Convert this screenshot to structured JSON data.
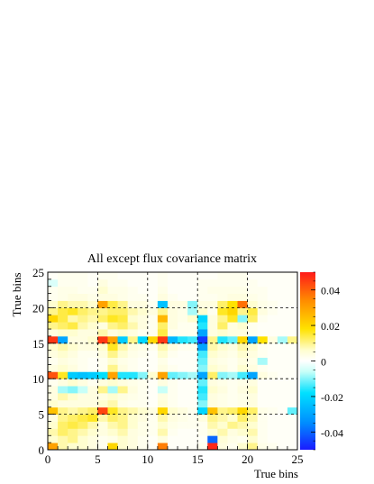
{
  "chart_data": {
    "type": "heatmap",
    "title": "All except flux covariance matrix",
    "xlabel": "True bins",
    "ylabel": "True bins",
    "xlim": [
      0,
      25
    ],
    "ylim": [
      0,
      25
    ],
    "x_ticks": [
      "0",
      "5",
      "10",
      "15",
      "20",
      "25"
    ],
    "y_ticks": [
      "0",
      "5",
      "10",
      "15",
      "20",
      "25"
    ],
    "colorbar": {
      "range": [
        -0.05,
        0.05
      ],
      "ticks": [
        "-0.04",
        "-0.02",
        "0",
        "0.02",
        "0.04"
      ],
      "tick_values": [
        -0.04,
        -0.02,
        0,
        0.02,
        0.04
      ]
    },
    "grid": "dashed at 5, 10, 15, 20",
    "bins_x": 25,
    "bins_y": 25,
    "z": [
      [
        0.03,
        0.008,
        0.006,
        0.006,
        0.004,
        0.002,
        0.02,
        0.006,
        0.004,
        0.002,
        0.001,
        0.036,
        0.001,
        0.001,
        0.001,
        0.002,
        0.048,
        0.004,
        0.002,
        0.006,
        0.01,
        0.003,
        0.002,
        0.001,
        0.001
      ],
      [
        0.006,
        0.008,
        0.01,
        0.006,
        0.004,
        0.002,
        0.003,
        0.006,
        0.004,
        0.002,
        0.001,
        0.004,
        0.001,
        0.001,
        0.001,
        0.001,
        -0.04,
        0.005,
        0.003,
        0.002,
        0.006,
        0.002,
        0.001,
        0.001,
        0.001
      ],
      [
        0.008,
        0.012,
        0.01,
        0.008,
        0.006,
        0.004,
        0.006,
        0.008,
        0.004,
        0.003,
        0.002,
        0.008,
        0.002,
        0.001,
        0.001,
        0.002,
        0.005,
        0.008,
        0.004,
        0.006,
        0.008,
        0.002,
        0.001,
        0.001,
        0.001
      ],
      [
        0.006,
        0.012,
        0.014,
        0.012,
        0.008,
        0.004,
        0.008,
        0.01,
        0.006,
        0.003,
        0.002,
        0.006,
        0.003,
        0.002,
        0.002,
        0.002,
        0.008,
        0.006,
        0.01,
        0.008,
        0.006,
        0.002,
        0.001,
        0.001,
        0.001
      ],
      [
        0.004,
        0.01,
        0.012,
        0.014,
        0.016,
        0.008,
        0.012,
        0.01,
        0.006,
        0.004,
        0.002,
        0.008,
        0.004,
        0.003,
        0.002,
        0.004,
        0.01,
        0.008,
        0.006,
        0.012,
        0.008,
        0.002,
        0.001,
        0.001,
        0.001
      ],
      [
        0.024,
        0.01,
        0.008,
        0.01,
        0.012,
        0.044,
        0.016,
        0.01,
        0.008,
        0.006,
        0.004,
        0.02,
        0.006,
        0.004,
        0.002,
        -0.02,
        0.024,
        0.01,
        0.012,
        0.02,
        0.012,
        0.003,
        0.002,
        0.001,
        -0.012
      ],
      [
        0.006,
        0.004,
        0.004,
        0.004,
        0.004,
        0.006,
        0.008,
        0.003,
        0.002,
        0.002,
        0.001,
        0.005,
        0.002,
        0.001,
        0.001,
        -0.01,
        0.004,
        0.003,
        0.002,
        0.003,
        0.004,
        0.001,
        0.001,
        0.001,
        0.001
      ],
      [
        0.004,
        0.008,
        0.006,
        0.004,
        0.004,
        0.004,
        0.006,
        0.004,
        0.003,
        0.002,
        0.001,
        0.004,
        0.002,
        0.001,
        0.001,
        -0.014,
        0.004,
        0.003,
        0.002,
        0.003,
        0.004,
        0.001,
        0.001,
        0.001,
        0.001
      ],
      [
        0.004,
        -0.008,
        -0.01,
        -0.006,
        0.004,
        0.01,
        -0.008,
        0.01,
        0.004,
        0.002,
        0.001,
        -0.006,
        0.002,
        0.001,
        0.001,
        -0.016,
        0.006,
        0.004,
        0.002,
        0.004,
        0.006,
        0.001,
        0.001,
        0.001,
        0.001
      ],
      [
        0.002,
        0.004,
        0.006,
        0.004,
        0.002,
        0.004,
        0.006,
        0.004,
        0.003,
        0.002,
        0.001,
        0.004,
        0.002,
        0.001,
        0.001,
        -0.012,
        0.004,
        0.003,
        0.002,
        0.003,
        0.004,
        0.001,
        0.001,
        0.001,
        0.001
      ],
      [
        0.042,
        0.016,
        -0.022,
        -0.024,
        -0.022,
        -0.018,
        0.03,
        -0.016,
        -0.016,
        -0.01,
        0.006,
        0.03,
        -0.012,
        -0.01,
        -0.008,
        -0.03,
        0.012,
        -0.01,
        -0.008,
        -0.014,
        -0.03,
        0.004,
        0.002,
        0.001,
        0.001
      ],
      [
        0.004,
        0.006,
        0.004,
        0.002,
        0.001,
        0.002,
        0.01,
        0.004,
        0.002,
        0.001,
        0.001,
        0.004,
        0.002,
        0.001,
        0.001,
        -0.01,
        0.006,
        0.004,
        0.002,
        0.006,
        0.004,
        0.002,
        0.001,
        0.001,
        0.001
      ],
      [
        0.002,
        0.004,
        0.003,
        0.002,
        0.001,
        0.002,
        0.006,
        0.003,
        0.002,
        0.001,
        0.001,
        0.003,
        0.001,
        0.001,
        0.001,
        -0.012,
        0.004,
        0.003,
        0.002,
        0.004,
        0.003,
        -0.008,
        0.001,
        0.001,
        0.001
      ],
      [
        0.004,
        0.006,
        0.004,
        0.002,
        0.002,
        0.004,
        0.01,
        0.006,
        0.003,
        0.002,
        0.001,
        0.006,
        0.002,
        0.001,
        0.001,
        -0.014,
        0.006,
        0.004,
        0.003,
        0.006,
        0.004,
        0.002,
        0.001,
        0.001,
        0.001
      ],
      [
        0.006,
        0.008,
        0.006,
        0.004,
        0.004,
        0.006,
        0.016,
        0.008,
        0.004,
        0.003,
        0.002,
        0.008,
        0.004,
        0.002,
        0.002,
        -0.03,
        0.008,
        0.006,
        0.004,
        0.008,
        0.006,
        0.002,
        0.001,
        0.001,
        0.001
      ],
      [
        0.046,
        -0.03,
        0.004,
        0.004,
        0.006,
        0.046,
        0.03,
        -0.022,
        0.01,
        -0.02,
        0.02,
        0.046,
        -0.026,
        -0.016,
        -0.014,
        -0.046,
        0.01,
        -0.016,
        -0.012,
        0.02,
        -0.03,
        0.018,
        0.004,
        -0.008,
        0.01
      ],
      [
        0.004,
        0.006,
        0.006,
        0.004,
        0.004,
        0.008,
        0.004,
        0.006,
        0.004,
        0.002,
        0.002,
        0.014,
        0.002,
        0.002,
        0.002,
        -0.03,
        0.004,
        0.006,
        0.004,
        0.004,
        0.002,
        0.001,
        0.001,
        0.001,
        0.001
      ],
      [
        0.01,
        0.012,
        0.014,
        0.008,
        0.006,
        0.004,
        0.01,
        0.012,
        0.008,
        0.004,
        0.002,
        0.012,
        0.004,
        0.002,
        0.002,
        -0.016,
        0.004,
        0.012,
        0.004,
        0.006,
        0.002,
        0.001,
        0.001,
        0.001,
        0.001
      ],
      [
        0.02,
        0.014,
        0.008,
        0.01,
        0.008,
        0.012,
        0.016,
        0.014,
        0.006,
        0.004,
        0.002,
        0.026,
        0.004,
        0.003,
        0.006,
        -0.02,
        0.004,
        0.01,
        0.016,
        -0.01,
        0.012,
        0.002,
        0.001,
        0.001,
        0.001
      ],
      [
        0.01,
        0.014,
        0.016,
        0.012,
        0.01,
        0.01,
        0.012,
        0.012,
        0.008,
        0.006,
        0.004,
        0.01,
        0.004,
        0.003,
        -0.008,
        0.006,
        0.002,
        0.016,
        0.02,
        0.01,
        0.014,
        0.004,
        0.002,
        0.001,
        0.001
      ],
      [
        0.006,
        0.01,
        0.008,
        0.008,
        0.006,
        0.03,
        0.014,
        0.01,
        0.004,
        0.004,
        0.002,
        -0.024,
        0.004,
        0.004,
        -0.01,
        0.004,
        0.004,
        0.012,
        0.018,
        0.038,
        0.006,
        0.003,
        0.002,
        0.001,
        0.001
      ],
      [
        0.002,
        0.003,
        0.004,
        0.004,
        0.003,
        0.004,
        0.004,
        0.003,
        0.002,
        0.002,
        0.001,
        0.004,
        0.002,
        0.001,
        0.001,
        0.002,
        0.002,
        0.003,
        0.004,
        0.004,
        0.003,
        0.002,
        0.001,
        0.001,
        0.001
      ],
      [
        0.002,
        0.003,
        0.003,
        0.002,
        0.002,
        0.006,
        0.003,
        0.003,
        0.002,
        0.001,
        0.001,
        0.003,
        0.001,
        0.001,
        0.001,
        0.002,
        0.003,
        0.003,
        0.003,
        0.003,
        0.002,
        0.002,
        0.001,
        0.001,
        0.001
      ],
      [
        -0.004,
        0.002,
        0.002,
        0.002,
        0.001,
        0.004,
        0.002,
        0.002,
        0.001,
        0.001,
        0.001,
        0.002,
        0.001,
        0.001,
        0.001,
        0.002,
        0.002,
        0.002,
        0.002,
        0.002,
        0.002,
        0.001,
        0.001,
        0.001,
        0.001
      ],
      [
        0.001,
        0.002,
        0.002,
        0.002,
        0.001,
        0.002,
        0.002,
        0.001,
        0.001,
        0.001,
        0.001,
        0.002,
        0.001,
        0.001,
        0.001,
        0.001,
        0.001,
        0.002,
        0.002,
        0.002,
        0.001,
        0.001,
        0.001,
        0.001,
        0.001
      ]
    ]
  }
}
